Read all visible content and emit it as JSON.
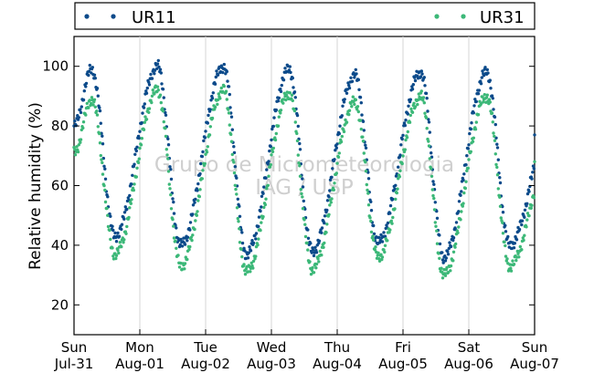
{
  "chart_data": {
    "type": "scatter",
    "title": "",
    "xlabel": "",
    "ylabel": "Relative humidity (%)",
    "ylim": [
      10,
      110
    ],
    "yticks": [
      20,
      40,
      60,
      80,
      100
    ],
    "xlim": [
      0,
      7
    ],
    "x_units": "days since Sun Jul-31 00:00",
    "xticks": [
      {
        "day": "Sun",
        "date": "Jul-31"
      },
      {
        "day": "Mon",
        "date": "Aug-01"
      },
      {
        "day": "Tue",
        "date": "Aug-02"
      },
      {
        "day": "Wed",
        "date": "Aug-03"
      },
      {
        "day": "Thu",
        "date": "Aug-04"
      },
      {
        "day": "Fri",
        "date": "Aug-05"
      },
      {
        "day": "Sat",
        "date": "Aug-06"
      },
      {
        "day": "Sun",
        "date": "Aug-07"
      }
    ],
    "grid": "vertical",
    "legend_placement": "top",
    "series": [
      {
        "name": "UR11",
        "color": "#0b4a8a",
        "daily": [
          {
            "max": 99,
            "min": 43
          },
          {
            "max": 100,
            "min": 40
          },
          {
            "max": 100,
            "min": 37
          },
          {
            "max": 99,
            "min": 38
          },
          {
            "max": 97,
            "min": 41
          },
          {
            "max": 98,
            "min": 36
          },
          {
            "max": 98,
            "min": 40
          }
        ],
        "start": 84,
        "end": 77
      },
      {
        "name": "UR31",
        "color": "#3cb878",
        "daily": [
          {
            "max": 89,
            "min": 37
          },
          {
            "max": 92,
            "min": 33
          },
          {
            "max": 92,
            "min": 31
          },
          {
            "max": 91,
            "min": 32
          },
          {
            "max": 88,
            "min": 36
          },
          {
            "max": 90,
            "min": 30
          },
          {
            "max": 90,
            "min": 33
          }
        ],
        "start": 75,
        "end": 68
      }
    ],
    "watermark": [
      "Grupo de Micrometeorologia",
      "IAG / USP"
    ]
  }
}
